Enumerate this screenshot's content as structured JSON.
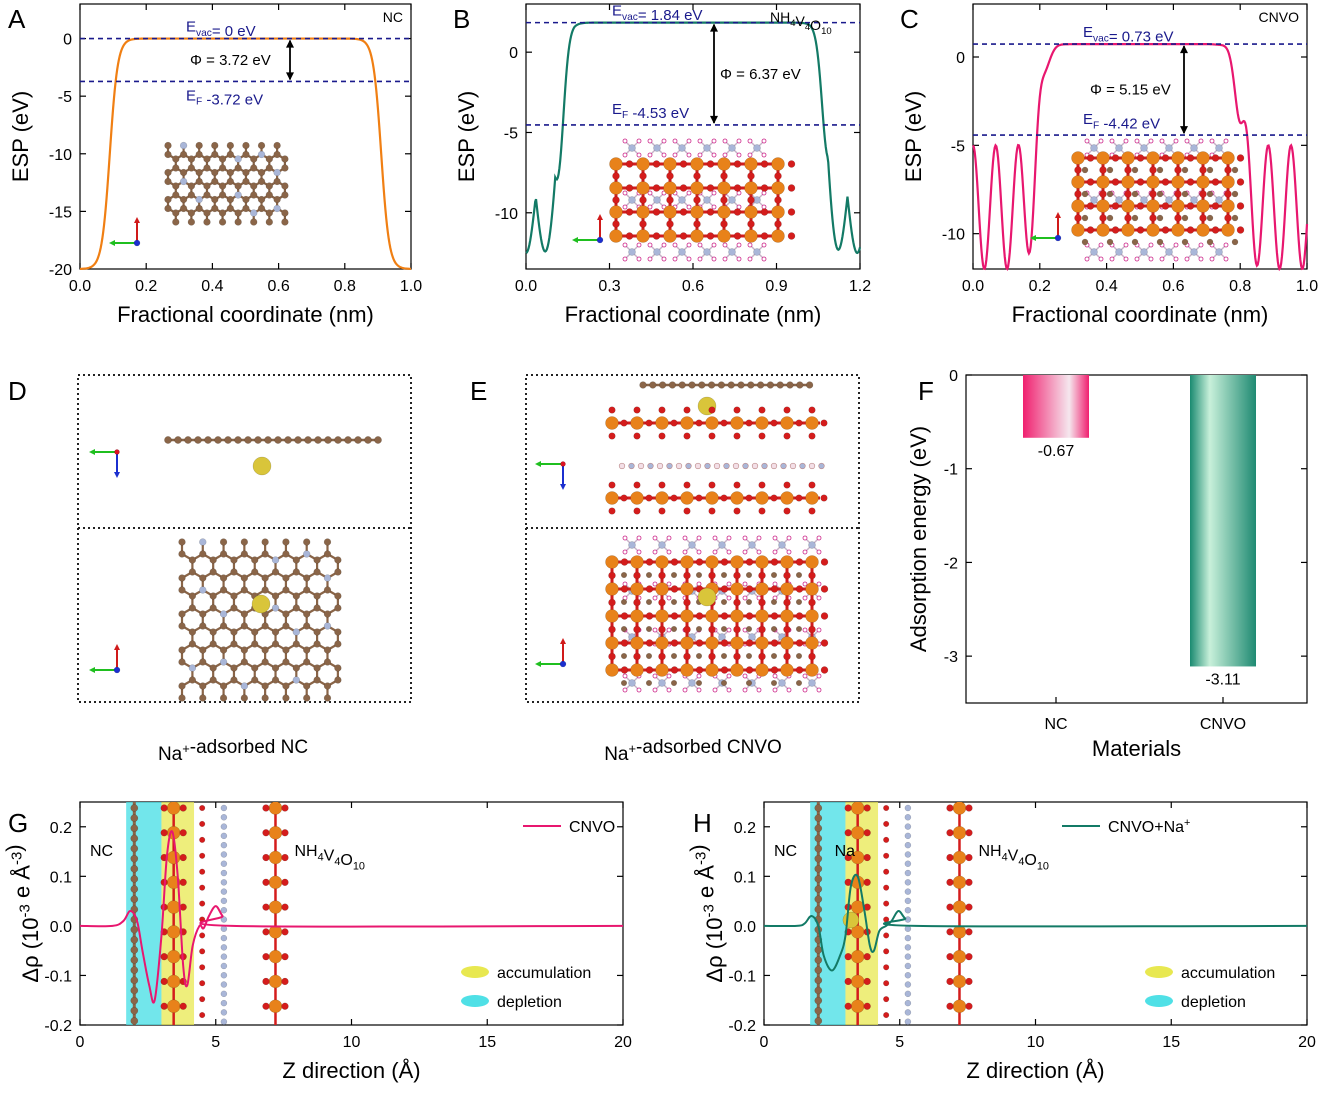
{
  "colors": {
    "nc_line": "#f07f13",
    "nh4v4o10_line": "#137a66",
    "cnvo_line": "#e8176f",
    "dash": "#1a1a8c",
    "carbon": "#8a6548",
    "nitrogen": "#a9b6d8",
    "vanadium": "#e8821a",
    "oxygen": "#d41c1c",
    "sodium": "#d9c53a",
    "accum": "#e8e850",
    "deplete": "#4fe0e6"
  },
  "panel_letters": {
    "a": "A",
    "b": "B",
    "c": "C",
    "d": "D",
    "e": "E",
    "f": "F",
    "g": "G",
    "h": "H"
  },
  "captions": {
    "d_pre": "Na",
    "d_sup": "+",
    "d_post": "-adsorbed NC",
    "e_pre": "Na",
    "e_sup": "+",
    "e_post": "-adsorbed CNVO"
  },
  "chart_data": [
    {
      "panel": "A",
      "type": "line",
      "tag": "NC",
      "xlabel": "Fractional coordinate (nm)",
      "ylabel": "ESP (eV)",
      "xlim": [
        0.0,
        1.0
      ],
      "ylim": [
        -20,
        3
      ],
      "xticks": [
        "0.0",
        "0.2",
        "0.4",
        "0.6",
        "0.8",
        "1.0"
      ],
      "yticks": [
        "0",
        "-5",
        "-10",
        "-15",
        "-20"
      ],
      "series": [
        {
          "name": "NC",
          "plateau": 0,
          "floor": -20,
          "edges": [
            0.09,
            0.91
          ]
        }
      ],
      "vacuum_level": 0,
      "fermi_level": -3.72,
      "annotations": {
        "evac_pre": "E",
        "evac_sub": "vac",
        "evac_post": "= 0 eV",
        "ef_pre": "E",
        "ef_sub": "F",
        "ef_post": " -3.72 eV",
        "phi": "Φ = 3.72 eV"
      }
    },
    {
      "panel": "B",
      "type": "line",
      "tag_parts": [
        "NH",
        "4",
        "V",
        "4",
        "O",
        "10"
      ],
      "xlabel": "Fractional coordinate (nm)",
      "ylabel": "ESP (eV)",
      "xlim": [
        0.0,
        1.2
      ],
      "ylim": [
        -13.5,
        3
      ],
      "xticks": [
        "0.0",
        "0.3",
        "0.6",
        "0.9",
        "1.2"
      ],
      "yticks": [
        "0",
        "-5",
        "-10"
      ],
      "series": [
        {
          "name": "NH4V4O10",
          "plateau": 1.84,
          "floor": -12.5,
          "edges": [
            0.13,
            1.07
          ]
        }
      ],
      "vacuum_level": 1.84,
      "fermi_level": -4.53,
      "annotations": {
        "evac_pre": "E",
        "evac_sub": "vac",
        "evac_post": "= 1.84 eV",
        "ef_pre": "E",
        "ef_sub": "F",
        "ef_post": " -4.53 eV",
        "phi": "Φ = 6.37 eV"
      }
    },
    {
      "panel": "C",
      "type": "line",
      "tag": "CNVO",
      "xlabel": "Fractional coordinate (nm)",
      "ylabel": "ESP (eV)",
      "xlim": [
        0.0,
        1.0
      ],
      "ylim": [
        -12,
        3
      ],
      "xticks": [
        "0.0",
        "0.2",
        "0.4",
        "0.6",
        "0.8",
        "1.0"
      ],
      "yticks": [
        "0",
        "-5",
        "-10"
      ],
      "series": [
        {
          "name": "CNVO",
          "plateau": 0.73,
          "floor": -12,
          "edges": [
            0.2,
            0.8
          ]
        }
      ],
      "vacuum_level": 0.73,
      "fermi_level": -4.42,
      "annotations": {
        "evac_pre": "E",
        "evac_sub": "vac",
        "evac_post": "= 0.73 eV",
        "ef_pre": "E",
        "ef_sub": "F",
        "ef_post": " -4.42 eV",
        "phi": "Φ = 5.15 eV"
      }
    },
    {
      "panel": "F",
      "type": "bar",
      "xlabel": "Materials",
      "ylabel": "Adsorption energy (eV)",
      "categories": [
        "NC",
        "CNVO"
      ],
      "values": [
        -0.67,
        -3.11
      ],
      "value_labels": [
        "-0.67",
        "-3.11"
      ],
      "ylim": [
        -3.5,
        0
      ],
      "yticks": [
        "0",
        "-1",
        "-2",
        "-3"
      ]
    },
    {
      "panel": "G",
      "type": "line",
      "xlabel": "Z direction (Å)",
      "ylabel_parts": {
        "pre": "Δρ (10",
        "sup1": "-3",
        "mid": " e Å",
        "sup2": "-3",
        "post": ")"
      },
      "xlim": [
        0,
        20
      ],
      "ylim": [
        -0.2,
        0.25
      ],
      "xticks": [
        "0",
        "5",
        "10",
        "15",
        "20"
      ],
      "yticks": [
        "0.2",
        "0.1",
        "0.0",
        "-0.1",
        "-0.2"
      ],
      "legend": "CNVO",
      "series": [
        {
          "name": "CNVO",
          "points": [
            [
              0,
              0
            ],
            [
              1.2,
              0.0
            ],
            [
              1.6,
              0.01
            ],
            [
              1.85,
              0.03
            ],
            [
              2.1,
              0.01
            ],
            [
              2.3,
              -0.05
            ],
            [
              2.55,
              -0.12
            ],
            [
              2.75,
              -0.15
            ],
            [
              3.0,
              -0.02
            ],
            [
              3.2,
              0.14
            ],
            [
              3.4,
              0.19
            ],
            [
              3.6,
              0.1
            ],
            [
              3.8,
              -0.08
            ],
            [
              3.95,
              -0.12
            ],
            [
              4.15,
              -0.04
            ],
            [
              4.4,
              0.0
            ],
            [
              4.55,
              -0.005
            ],
            [
              4.75,
              0.02
            ],
            [
              5.0,
              0.04
            ],
            [
              5.25,
              0.02
            ],
            [
              5.6,
              0.0
            ],
            [
              20,
              0
            ]
          ]
        }
      ],
      "region_labels": {
        "left": "NC",
        "right_parts": [
          "NH",
          "4",
          "V",
          "4",
          "O",
          "10"
        ]
      },
      "legend_items": [
        "accumulation",
        "depletion"
      ]
    },
    {
      "panel": "H",
      "type": "line",
      "xlabel": "Z direction (Å)",
      "ylabel_parts": {
        "pre": "Δρ (10",
        "sup1": "-3",
        "mid": " e Å",
        "sup2": "-3",
        "post": ")"
      },
      "xlim": [
        0,
        20
      ],
      "ylim": [
        -0.2,
        0.25
      ],
      "xticks": [
        "0",
        "5",
        "10",
        "15",
        "20"
      ],
      "yticks": [
        "0.2",
        "0.1",
        "0.0",
        "-0.1",
        "-0.2"
      ],
      "legend_pre": "CNVO+Na",
      "legend_sup": "+",
      "series": [
        {
          "name": "CNVO+Na+",
          "points": [
            [
              0,
              0
            ],
            [
              1.2,
              0.0
            ],
            [
              1.5,
              0.005
            ],
            [
              1.75,
              0.02
            ],
            [
              2.0,
              0.0
            ],
            [
              2.2,
              -0.06
            ],
            [
              2.5,
              -0.09
            ],
            [
              2.8,
              -0.06
            ],
            [
              3.0,
              -0.02
            ],
            [
              3.2,
              0.08
            ],
            [
              3.45,
              0.1
            ],
            [
              3.7,
              0.03
            ],
            [
              3.9,
              -0.04
            ],
            [
              4.05,
              -0.05
            ],
            [
              4.25,
              -0.01
            ],
            [
              4.5,
              0.0
            ],
            [
              4.7,
              0.01
            ],
            [
              4.95,
              0.03
            ],
            [
              5.2,
              0.015
            ],
            [
              5.6,
              0.0
            ],
            [
              20,
              0
            ]
          ]
        }
      ],
      "region_labels": {
        "left": "NC",
        "na": "Na",
        "right_parts": [
          "NH",
          "4",
          "V",
          "4",
          "O",
          "10"
        ]
      },
      "legend_items": [
        "accumulation",
        "depletion"
      ]
    }
  ]
}
